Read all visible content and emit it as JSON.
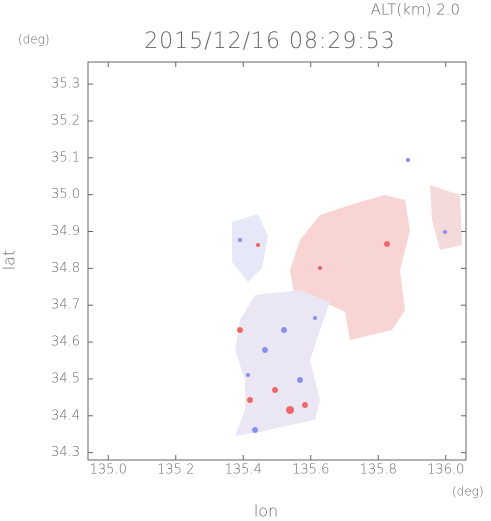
{
  "chart_data": {
    "type": "map",
    "title": "2015/12/16 08:29:53",
    "altitude_label": "ALT(km) 2.0",
    "x_label": "lon",
    "x_unit": "(deg)",
    "y_label": "lat",
    "y_unit": "(deg)",
    "xlim": [
      134.94,
      136.06
    ],
    "ylim": [
      34.28,
      35.36
    ],
    "xticks": [
      {
        "value": 135,
        "label": "135.0"
      },
      135.2,
      135.4,
      135.6,
      135.8,
      {
        "value": 136,
        "label": "136.0"
      }
    ],
    "yticks": [
      34.3,
      34.4,
      34.5,
      34.6,
      34.7,
      34.8,
      34.9,
      {
        "value": 35,
        "label": "35.0"
      },
      35.1,
      35.2,
      35.3
    ],
    "axis_color": "#666666"
  }
}
